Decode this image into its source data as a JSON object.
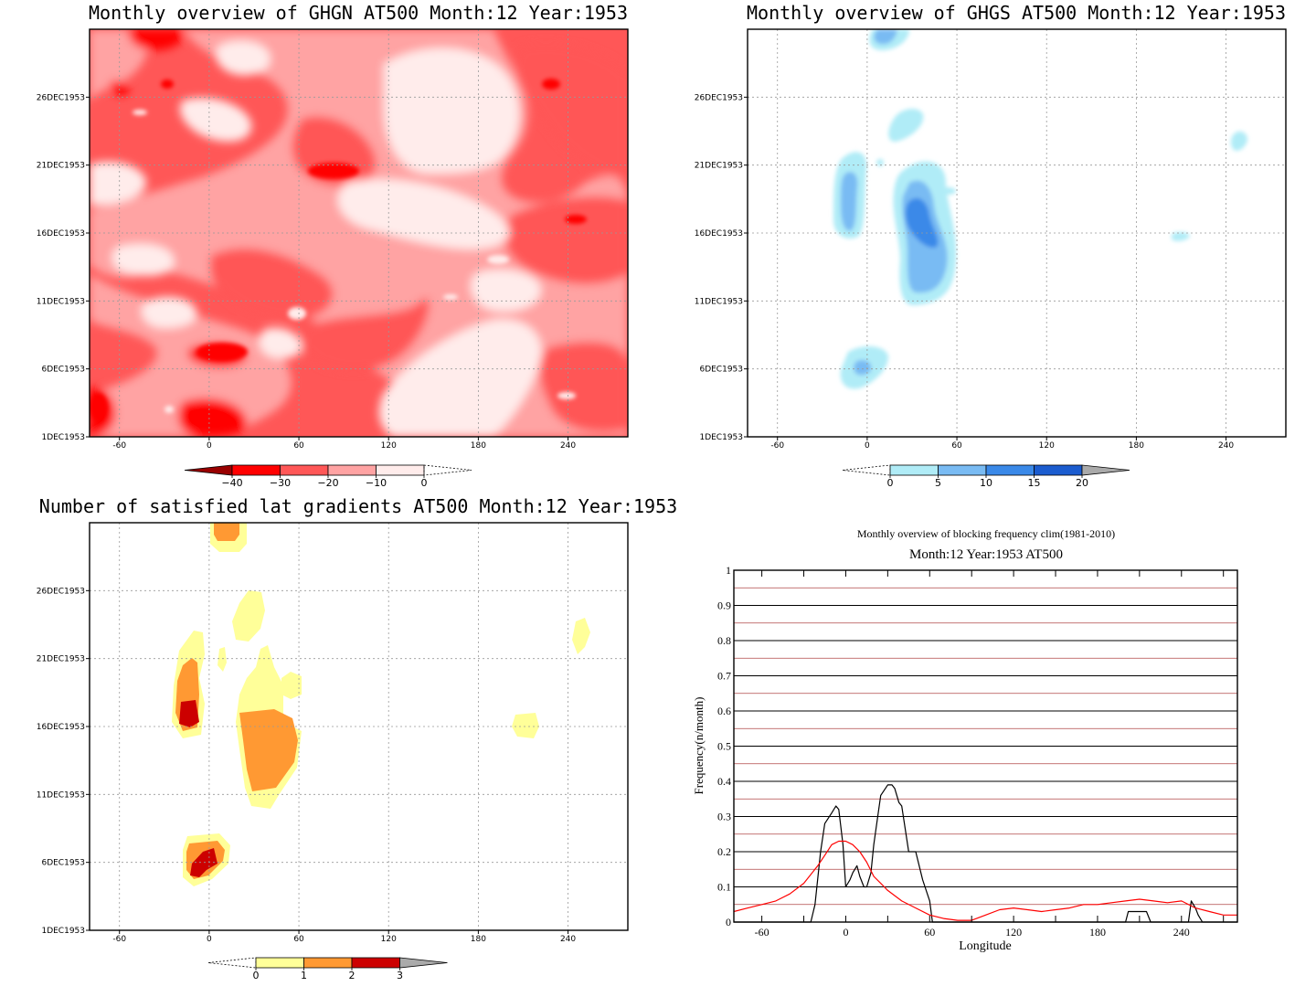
{
  "colors": {
    "red": [
      "#ffeceb",
      "#ffa3a3",
      "#ff5757",
      "#ff0000",
      "#990000"
    ],
    "blue": [
      "#b0ecf7",
      "#79bbf3",
      "#3a89e8",
      "#1b5ccf",
      "#aaaaaa"
    ],
    "yellow": [
      "#ffff99",
      "#ff9933",
      "#cc0000",
      "#aaaaaa"
    ],
    "black_line": "#000000",
    "red_line": "#ff0000"
  },
  "panels": {
    "ghgn": {
      "title": "Monthly overview of GHGN AT500 Month:12 Year:1953",
      "colorbar_labels": [
        "−40",
        "−30",
        "−20",
        "−10",
        "0"
      ]
    },
    "ghgs": {
      "title": "Monthly overview of GHGS AT500 Month:12 Year:1953",
      "colorbar_labels": [
        "0",
        "5",
        "10",
        "15",
        "20"
      ]
    },
    "lat": {
      "title": "Number of satisfied lat gradients AT500 Month:12 Year:1953",
      "colorbar_labels": [
        "0",
        "1",
        "2",
        "3"
      ]
    },
    "freq": {
      "title": "Monthly overview of blocking frequency clim(1981-2010)",
      "subtitle": "Month:12 Year:1953  AT500",
      "ylabel": "Frequency(n/month)",
      "xlabel": "Longitude"
    }
  },
  "axes": {
    "x_ticks": [
      "-60",
      "0",
      "60",
      "120",
      "180",
      "240"
    ],
    "y_ticks": [
      "1DEC1953",
      "6DEC1953",
      "11DEC1953",
      "16DEC1953",
      "21DEC1953",
      "26DEC1953"
    ]
  },
  "chart_data": [
    {
      "type": "heatmap",
      "title": "Monthly overview of GHGN AT500 Month:12 Year:1953",
      "x_range": [
        -80,
        280
      ],
      "y_range": [
        "1DEC1953",
        "31DEC1953"
      ],
      "levels": [
        -40,
        -30,
        -20,
        -10,
        0
      ],
      "note": "contour field, mostly between -20 and 0"
    },
    {
      "type": "heatmap",
      "title": "Monthly overview of GHGS AT500 Month:12 Year:1953",
      "x_range": [
        -80,
        280
      ],
      "y_range": [
        "1DEC1953",
        "31DEC1953"
      ],
      "levels": [
        0,
        5,
        10,
        15,
        20
      ]
    },
    {
      "type": "heatmap",
      "title": "Number of satisfied lat gradients AT500 Month:12 Year:1953",
      "x_range": [
        -80,
        280
      ],
      "y_range": [
        "1DEC1953",
        "31DEC1953"
      ],
      "levels": [
        0,
        1,
        2,
        3
      ]
    },
    {
      "type": "line",
      "title": "Monthly overview of blocking frequency clim(1981-2010)",
      "subtitle": "Month:12 Year:1953  AT500",
      "xlabel": "Longitude",
      "ylabel": "Frequency(n/month)",
      "xlim": [
        -80,
        280
      ],
      "ylim": [
        0,
        1
      ],
      "x_ticks": [
        -60,
        0,
        60,
        120,
        180,
        240
      ],
      "y_ticks": [
        0,
        0.1,
        0.2,
        0.3,
        0.4,
        0.5,
        0.6,
        0.7,
        0.8,
        0.9,
        1
      ],
      "series": [
        {
          "x": [
            -80,
            -25,
            -22,
            -18,
            -15,
            -10,
            -7,
            -5,
            -2,
            0,
            3,
            5,
            8,
            10,
            13,
            15,
            18,
            20,
            25,
            30,
            33,
            35,
            38,
            40,
            45,
            50,
            55,
            60,
            62,
            200,
            202,
            215,
            218,
            220,
            245,
            247,
            250,
            252,
            255,
            280
          ],
          "y": [
            0,
            0,
            0.05,
            0.2,
            0.28,
            0.31,
            0.33,
            0.32,
            0.22,
            0.1,
            0.12,
            0.14,
            0.16,
            0.13,
            0.1,
            0.1,
            0.14,
            0.22,
            0.36,
            0.39,
            0.39,
            0.38,
            0.34,
            0.33,
            0.2,
            0.2,
            0.12,
            0.06,
            0,
            0,
            0.03,
            0.03,
            0,
            0,
            0,
            0.06,
            0.04,
            0.02,
            0,
            0
          ]
        },
        {
          "x": [
            -80,
            -70,
            -60,
            -50,
            -40,
            -30,
            -20,
            -15,
            -10,
            -5,
            0,
            5,
            10,
            15,
            20,
            25,
            30,
            40,
            50,
            60,
            70,
            80,
            90,
            100,
            110,
            120,
            130,
            140,
            150,
            160,
            170,
            180,
            190,
            200,
            210,
            220,
            230,
            240,
            250,
            260,
            270,
            280
          ],
          "y": [
            0.03,
            0.04,
            0.05,
            0.06,
            0.08,
            0.11,
            0.16,
            0.19,
            0.22,
            0.23,
            0.23,
            0.22,
            0.2,
            0.17,
            0.13,
            0.11,
            0.09,
            0.06,
            0.04,
            0.02,
            0.01,
            0.005,
            0.005,
            0.02,
            0.035,
            0.04,
            0.035,
            0.03,
            0.035,
            0.04,
            0.05,
            0.05,
            0.055,
            0.06,
            0.065,
            0.06,
            0.055,
            0.06,
            0.04,
            0.03,
            0.02,
            0.02
          ]
        }
      ]
    }
  ]
}
